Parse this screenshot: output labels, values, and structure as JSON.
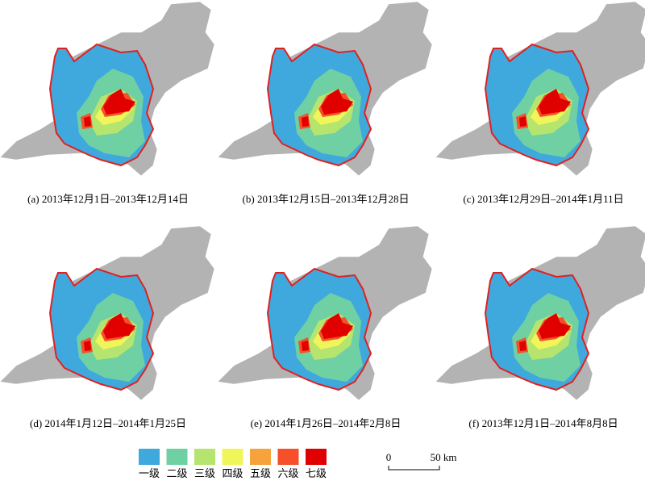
{
  "panels": [
    {
      "caption": "(a) 2013年12月1日–2013年12月14日"
    },
    {
      "caption": "(b) 2013年12月15日–2013年12月28日"
    },
    {
      "caption": "(c) 2013年12月29日–2014年1月11日"
    },
    {
      "caption": "(d) 2014年1月12日–2014年1月25日"
    },
    {
      "caption": "(e) 2014年1月26日–2014年2月8日"
    },
    {
      "caption": "(f) 2013年12月1日–2014年8月8日"
    }
  ],
  "legend": {
    "items": [
      {
        "label": "一级",
        "color": "#3fa9de"
      },
      {
        "label": "二级",
        "color": "#6fd0a3"
      },
      {
        "label": "三级",
        "color": "#b5e56e"
      },
      {
        "label": "四级",
        "color": "#f0f55a"
      },
      {
        "label": "五级",
        "color": "#f7a33b"
      },
      {
        "label": "六级",
        "color": "#f5502a"
      },
      {
        "label": "七级",
        "color": "#e00000"
      }
    ]
  },
  "scale_bar": {
    "start": "0",
    "end": "50 km"
  }
}
